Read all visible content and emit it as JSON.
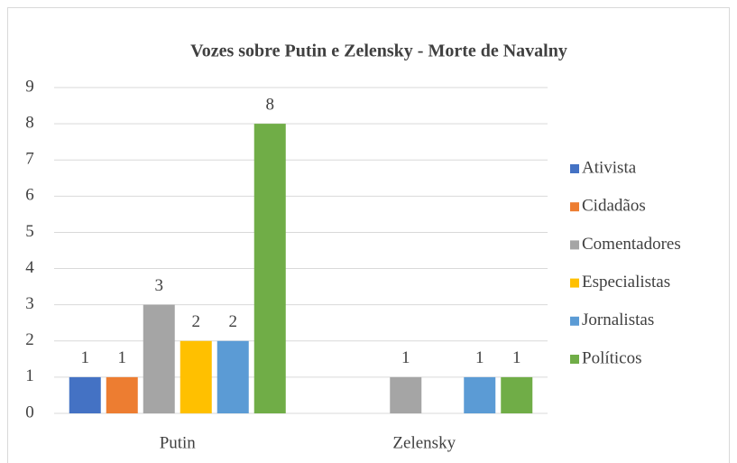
{
  "chart_data": {
    "type": "bar",
    "title": "Vozes sobre Putin e Zelensky - Morte de Navalny",
    "categories": [
      "Putin",
      "Zelensky"
    ],
    "series": [
      {
        "name": "Ativista",
        "color": "#4472c4",
        "values": [
          1,
          null
        ]
      },
      {
        "name": "Cidadãos",
        "color": "#ed7d31",
        "values": [
          1,
          null
        ]
      },
      {
        "name": "Comentadores",
        "color": "#a5a5a5",
        "values": [
          3,
          1
        ]
      },
      {
        "name": "Especialistas",
        "color": "#ffc000",
        "values": [
          2,
          null
        ]
      },
      {
        "name": "Jornalistas",
        "color": "#5b9bd5",
        "values": [
          2,
          1
        ]
      },
      {
        "name": "Políticos",
        "color": "#70ad47",
        "values": [
          8,
          1
        ]
      }
    ],
    "ylim": [
      0,
      9
    ],
    "yticks": [
      0,
      1,
      2,
      3,
      4,
      5,
      6,
      7,
      8,
      9
    ],
    "grid": true,
    "legend": "right"
  }
}
